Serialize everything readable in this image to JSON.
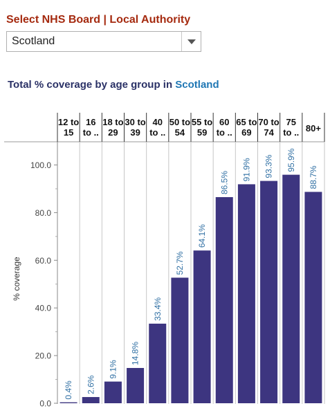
{
  "selector": {
    "label": "Select NHS Board | Local Authority",
    "value": "Scotland"
  },
  "chart_title": {
    "prefix": "Total % coverage by age group in ",
    "region": "Scotland"
  },
  "colors": {
    "bar": "#3d3580",
    "value_label": "#2f6fa3",
    "title_region": "#1f77b4",
    "selector_label": "#a52a0f"
  },
  "chart_data": {
    "type": "bar",
    "ylabel": "% coverage",
    "ylim": [
      0,
      100
    ],
    "yticks": [
      "0.0",
      "20.0",
      "40.0",
      "60.0",
      "80.0",
      "100.0"
    ],
    "grid": false,
    "categories": [
      [
        "12 to",
        "15"
      ],
      [
        "16",
        "to .."
      ],
      [
        "18 to",
        "29"
      ],
      [
        "30 to",
        "39"
      ],
      [
        "40",
        "to .."
      ],
      [
        "50 to",
        "54"
      ],
      [
        "55 to",
        "59"
      ],
      [
        "60",
        "to .."
      ],
      [
        "65 to",
        "69"
      ],
      [
        "70 to",
        "74"
      ],
      [
        "75",
        "to .."
      ],
      [
        "80+"
      ]
    ],
    "values": [
      0.4,
      2.6,
      9.1,
      14.8,
      33.4,
      52.7,
      64.1,
      86.5,
      91.9,
      93.3,
      95.9,
      88.7
    ],
    "data_labels": [
      "0.4%",
      "2.6%",
      "9.1%",
      "14.8%",
      "33.4%",
      "52.7%",
      "64.1%",
      "86.5%",
      "91.9%",
      "93.3%",
      "95.9%",
      "88.7%"
    ]
  }
}
